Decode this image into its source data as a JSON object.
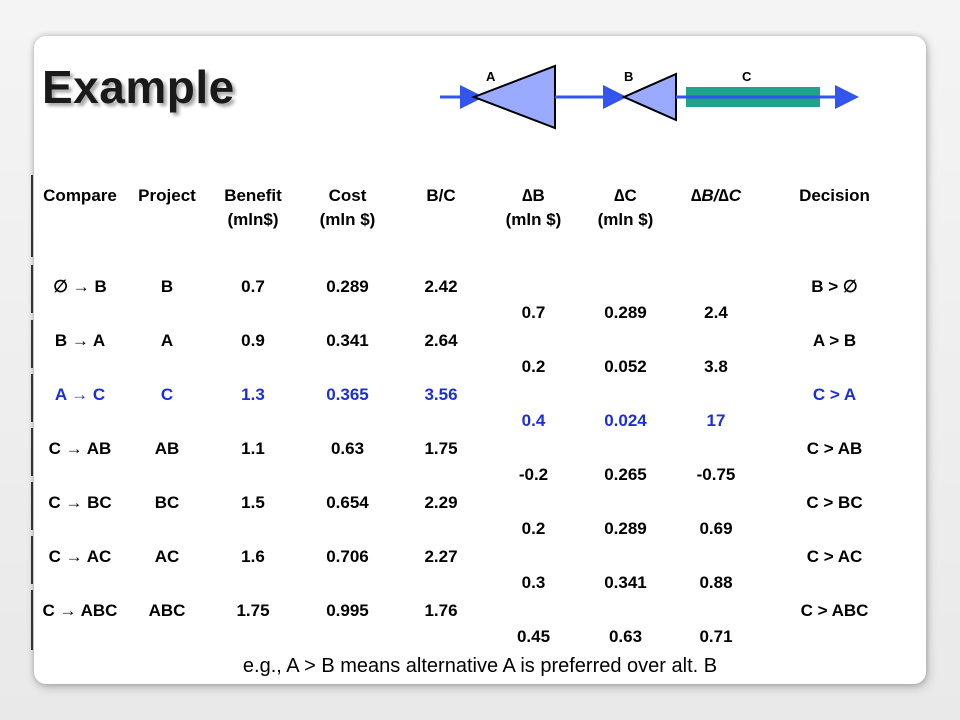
{
  "title": "Example",
  "diagram": {
    "labels": [
      "A",
      "B",
      "C"
    ]
  },
  "table": {
    "headers": [
      {
        "l1": "Compare",
        "l2": ""
      },
      {
        "l1": "Project",
        "l2": ""
      },
      {
        "l1": "Benefit",
        "l2": "(mln$)"
      },
      {
        "l1": "Cost",
        "l2": "(mln $)"
      },
      {
        "l1": "B/C",
        "l2": ""
      },
      {
        "l1": "∆B",
        "l2": "(mln $)"
      },
      {
        "l1": "∆C",
        "l2": "(mln $)"
      },
      {
        "l1": "∆B/∆C",
        "l2": ""
      },
      {
        "l1": "Decision",
        "l2": ""
      }
    ],
    "rows": [
      {
        "compare": "∅ → B",
        "project": "B",
        "benefit": "0.7",
        "cost": "0.289",
        "bc": "2.42",
        "dB": "0.7",
        "dC": "0.289",
        "dBdC": "2.4",
        "decision": "B > ∅"
      },
      {
        "compare": "B → A",
        "project": "A",
        "benefit": "0.9",
        "cost": "0.341",
        "bc": "2.64",
        "dB": "0.2",
        "dC": "0.052",
        "dBdC": "3.8",
        "decision": "A > B"
      },
      {
        "compare": "A → C",
        "project": "C",
        "benefit": "1.3",
        "cost": "0.365",
        "bc": "3.56",
        "dB": "0.4",
        "dC": "0.024",
        "dBdC": "17",
        "decision": "C > A"
      },
      {
        "compare": "C → AB",
        "project": "AB",
        "benefit": "1.1",
        "cost": "0.63",
        "bc": "1.75",
        "dB": "-0.2",
        "dC": "0.265",
        "dBdC": "-0.75",
        "decision": "C > AB"
      },
      {
        "compare": "C → BC",
        "project": "BC",
        "benefit": "1.5",
        "cost": "0.654",
        "bc": "2.29",
        "dB": "0.2",
        "dC": "0.289",
        "dBdC": "0.69",
        "decision": "C > BC"
      },
      {
        "compare": "C → AC",
        "project": "AC",
        "benefit": "1.6",
        "cost": "0.706",
        "bc": "2.27",
        "dB": "0.3",
        "dC": "0.341",
        "dBdC": "0.88",
        "decision": "C > AC"
      },
      {
        "compare": "C → ABC",
        "project": "ABC",
        "benefit": "1.75",
        "cost": "0.995",
        "bc": "1.76",
        "dB": "0.45",
        "dC": "0.63",
        "dBdC": "0.71",
        "decision": "C > ABC"
      }
    ],
    "highlight_row_index": 2,
    "highlight_color": "#1c2fd6"
  },
  "footer": "e.g., A > B means alternative A is preferred over alt. B",
  "colors": {
    "diagram_fill": "#99aaff",
    "diagram_arrow": "#3355ee",
    "diagram_bar": "#1fa38a"
  }
}
